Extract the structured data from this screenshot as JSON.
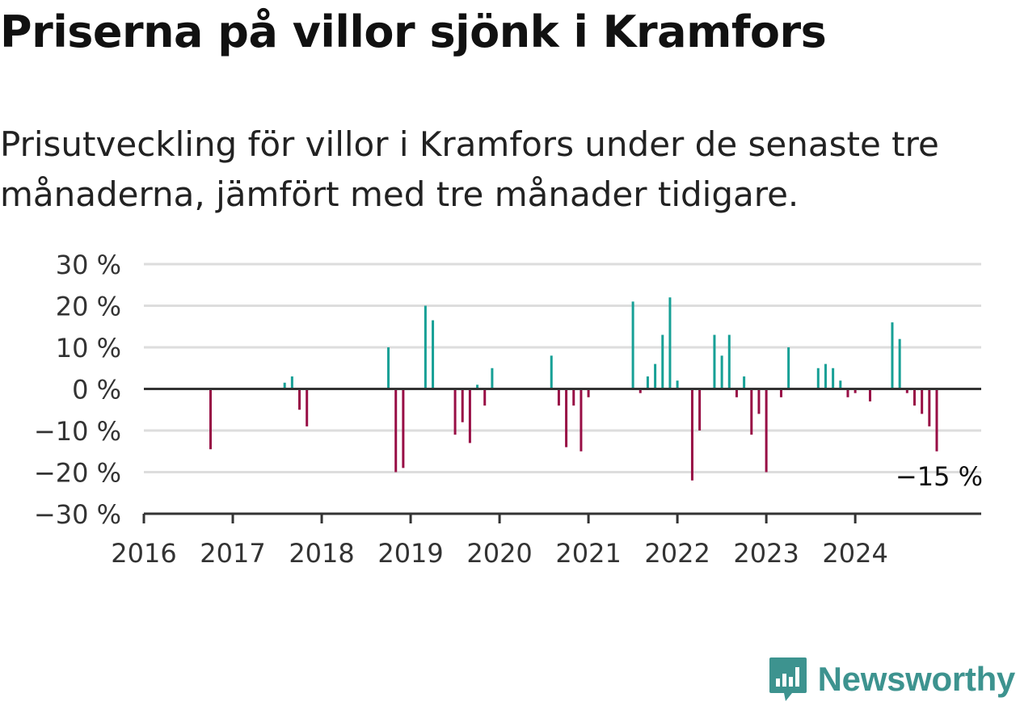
{
  "header": {
    "title": "Priserna på villor sjönk i Kramfors",
    "subtitle": "Prisutveckling för villor i Kramfors under de senaste tre månaderna, jämfört med tre månader tidigare."
  },
  "brand": {
    "name": "Newsworthy",
    "icon": "newsworthy-logo-icon",
    "color": "#3d938f"
  },
  "colors": {
    "positive": "#17a096",
    "negative": "#980e45",
    "grid": "#dddddd",
    "axis": "#333333"
  },
  "chart_data": {
    "type": "bar",
    "title": "Priserna på villor sjönk i Kramfors",
    "subtitle": "Prisutveckling för villor i Kramfors under de senaste tre månaderna, jämfört med tre månader tidigare.",
    "y_unit": "%",
    "ylim": [
      -30,
      30
    ],
    "y_ticks": [
      30,
      20,
      10,
      0,
      -10,
      -20,
      -30
    ],
    "y_tick_labels": [
      "30 %",
      "20 %",
      "10 %",
      "0 %",
      "−10 %",
      "−20 %",
      "−30 %"
    ],
    "x_range": [
      "2016-01",
      "2025-06"
    ],
    "x_ticks": [
      "2016",
      "2017",
      "2018",
      "2019",
      "2020",
      "2021",
      "2022",
      "2023",
      "2024"
    ],
    "grid": true,
    "annotation": {
      "x": "2024-11",
      "y": -15,
      "label": "−15 %"
    },
    "points": [
      {
        "x": "2016-10",
        "y": -14.5
      },
      {
        "x": "2017-08",
        "y": 1.5
      },
      {
        "x": "2017-09",
        "y": 3
      },
      {
        "x": "2017-10",
        "y": -5
      },
      {
        "x": "2017-11",
        "y": -9
      },
      {
        "x": "2018-10",
        "y": 10
      },
      {
        "x": "2018-11",
        "y": -20
      },
      {
        "x": "2018-12",
        "y": -19
      },
      {
        "x": "2019-03",
        "y": 20
      },
      {
        "x": "2019-04",
        "y": 16.5
      },
      {
        "x": "2019-07",
        "y": -11
      },
      {
        "x": "2019-08",
        "y": -8
      },
      {
        "x": "2019-09",
        "y": -13
      },
      {
        "x": "2019-10",
        "y": 1
      },
      {
        "x": "2019-11",
        "y": -4
      },
      {
        "x": "2019-12",
        "y": 5
      },
      {
        "x": "2020-08",
        "y": 8
      },
      {
        "x": "2020-09",
        "y": -4
      },
      {
        "x": "2020-10",
        "y": -14
      },
      {
        "x": "2020-11",
        "y": -4
      },
      {
        "x": "2020-12",
        "y": -15
      },
      {
        "x": "2021-01",
        "y": -2
      },
      {
        "x": "2021-07",
        "y": 21
      },
      {
        "x": "2021-08",
        "y": -1
      },
      {
        "x": "2021-09",
        "y": 3
      },
      {
        "x": "2021-10",
        "y": 6
      },
      {
        "x": "2021-11",
        "y": 13
      },
      {
        "x": "2021-12",
        "y": 22
      },
      {
        "x": "2022-01",
        "y": 2
      },
      {
        "x": "2022-03",
        "y": -22
      },
      {
        "x": "2022-04",
        "y": -10
      },
      {
        "x": "2022-06",
        "y": 13
      },
      {
        "x": "2022-07",
        "y": 8
      },
      {
        "x": "2022-08",
        "y": 13
      },
      {
        "x": "2022-09",
        "y": -2
      },
      {
        "x": "2022-10",
        "y": 3
      },
      {
        "x": "2022-11",
        "y": -11
      },
      {
        "x": "2022-12",
        "y": -6
      },
      {
        "x": "2023-01",
        "y": -20
      },
      {
        "x": "2023-03",
        "y": -2
      },
      {
        "x": "2023-04",
        "y": 10
      },
      {
        "x": "2023-08",
        "y": 5
      },
      {
        "x": "2023-09",
        "y": 6
      },
      {
        "x": "2023-10",
        "y": 5
      },
      {
        "x": "2023-11",
        "y": 2
      },
      {
        "x": "2023-12",
        "y": -2
      },
      {
        "x": "2024-01",
        "y": -1
      },
      {
        "x": "2024-03",
        "y": -3
      },
      {
        "x": "2024-06",
        "y": 16
      },
      {
        "x": "2024-07",
        "y": 12
      },
      {
        "x": "2024-08",
        "y": -1
      },
      {
        "x": "2024-09",
        "y": -4
      },
      {
        "x": "2024-10",
        "y": -6
      },
      {
        "x": "2024-11",
        "y": -9
      },
      {
        "x": "2024-12",
        "y": -15
      }
    ]
  }
}
